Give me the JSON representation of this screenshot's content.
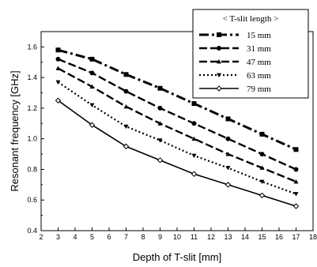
{
  "chart_data": {
    "type": "line",
    "title": "",
    "xlabel": "Depth of T-slit [mm]",
    "ylabel": "Resonant frequency [GHz]",
    "xlim": [
      2,
      18
    ],
    "ylim": [
      0.4,
      1.7
    ],
    "x_ticks": [
      "2",
      "3",
      "4",
      "5",
      "6",
      "7",
      "8",
      "9",
      "10",
      "11",
      "12",
      "13",
      "14",
      "15",
      "16",
      "17",
      "18"
    ],
    "y_ticks": [
      "0.4",
      "0.6",
      "0.8",
      "1.0",
      "1.2",
      "1.4",
      "1.6"
    ],
    "grid": false,
    "legend_title": "< T-slit length >",
    "legend_position": "top-right",
    "x": [
      3,
      5,
      7,
      9,
      11,
      13,
      15,
      17
    ],
    "series": [
      {
        "name": "15 mm",
        "marker": "square",
        "dash": "dash-dot",
        "values": [
          1.58,
          1.52,
          1.42,
          1.33,
          1.23,
          1.13,
          1.03,
          0.93
        ]
      },
      {
        "name": "31 mm",
        "marker": "circle",
        "dash": "dash",
        "values": [
          1.52,
          1.43,
          1.31,
          1.2,
          1.1,
          1.0,
          0.9,
          0.8
        ]
      },
      {
        "name": "47 mm",
        "marker": "triangle-up",
        "dash": "dash",
        "values": [
          1.46,
          1.34,
          1.21,
          1.1,
          1.0,
          0.9,
          0.81,
          0.72
        ]
      },
      {
        "name": "63 mm",
        "marker": "triangle-down",
        "dash": "dot",
        "values": [
          1.37,
          1.22,
          1.08,
          0.99,
          0.89,
          0.81,
          0.72,
          0.64
        ]
      },
      {
        "name": "79 mm",
        "marker": "diamond-open",
        "dash": "solid",
        "values": [
          1.25,
          1.09,
          0.95,
          0.86,
          0.77,
          0.7,
          0.63,
          0.56
        ]
      }
    ]
  }
}
